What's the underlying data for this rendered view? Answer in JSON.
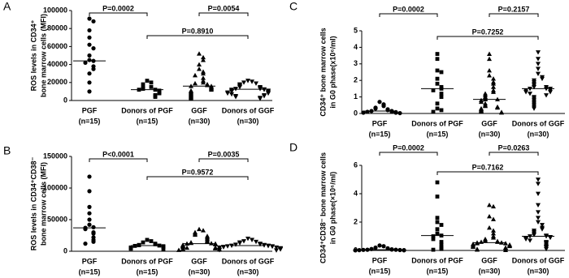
{
  "chart_data": [
    {
      "type": "dot",
      "panel_label": "A",
      "y_label": [
        "ROS levels in CD34⁺",
        "bone marrow cells (MFI)"
      ],
      "categories": [
        "PGF",
        "Donors of PGF",
        "GGF",
        "Donors of GGF"
      ],
      "group_sizes": [
        "(n=15)",
        "(n=15)",
        "(n=30)",
        "(n=30)"
      ],
      "markers": [
        "circle",
        "square",
        "triangle-up",
        "triangle-down"
      ],
      "color": "#000000",
      "ylim": [
        0,
        100000
      ],
      "yticks": [
        0,
        20000,
        40000,
        60000,
        80000,
        100000
      ],
      "groups": [
        {
          "median": 44000,
          "values": [
            91000,
            88000,
            78000,
            70000,
            62000,
            58000,
            50000,
            45000,
            44000,
            42000,
            38000,
            35000,
            30000,
            20000,
            10000
          ]
        },
        {
          "median": 12000,
          "values": [
            22000,
            20000,
            18000,
            15000,
            14000,
            13000,
            12000,
            12000,
            11000,
            10000,
            9000,
            8000,
            6000,
            5000,
            4000
          ]
        },
        {
          "median": 16000,
          "values": [
            52000,
            48000,
            45000,
            40000,
            35000,
            32000,
            30000,
            28000,
            25000,
            22000,
            20000,
            19000,
            18000,
            17000,
            16000,
            16000,
            15000,
            14000,
            13000,
            12000,
            11000,
            10000,
            9000,
            8000,
            7000,
            6000,
            5000,
            4000,
            3000,
            2000
          ]
        },
        {
          "median": 12500,
          "values": [
            22000,
            21000,
            20000,
            19000,
            18000,
            17000,
            16000,
            15000,
            15000,
            14000,
            13000,
            13000,
            12500,
            12000,
            12000,
            11000,
            11000,
            10000,
            10000,
            9000,
            9000,
            8000,
            8000,
            7000,
            6000,
            5000,
            5000,
            4000,
            3000,
            2000
          ]
        }
      ],
      "comparisons": [
        "P=0.0002",
        "P=0.0054",
        "P=0.8910"
      ]
    },
    {
      "type": "dot",
      "panel_label": "B",
      "y_label": [
        "ROS levels in CD34⁺CD38⁻",
        "bone marrow cells (MFI)"
      ],
      "categories": [
        "PGF",
        "Donors of PGF",
        "GGF",
        "Donors of GGF"
      ],
      "group_sizes": [
        "(n=15)",
        "(n=15)",
        "(n=30)",
        "(n=30)"
      ],
      "markers": [
        "circle",
        "square",
        "triangle-up",
        "triangle-down"
      ],
      "color": "#000000",
      "ylim": [
        0,
        150000
      ],
      "yticks": [
        0,
        50000,
        100000,
        150000
      ],
      "groups": [
        {
          "median": 37000,
          "values": [
            118000,
            95000,
            70000,
            60000,
            50000,
            42000,
            38000,
            37000,
            35000,
            30000,
            28000,
            22000,
            18000,
            15000,
            12000
          ]
        },
        {
          "median": 9000,
          "values": [
            18000,
            16000,
            14000,
            12000,
            11000,
            10000,
            9500,
            9000,
            8500,
            8000,
            7000,
            6000,
            5000,
            4000,
            3000
          ]
        },
        {
          "median": 12000,
          "values": [
            35000,
            33000,
            30000,
            28000,
            26000,
            24000,
            22000,
            20000,
            18000,
            16000,
            15000,
            14000,
            13000,
            12500,
            12000,
            12000,
            11000,
            10000,
            9000,
            8000,
            7000,
            6000,
            5500,
            5000,
            4500,
            4000,
            3500,
            3000,
            2500,
            2000
          ]
        },
        {
          "median": 9000,
          "values": [
            20000,
            18000,
            16000,
            15000,
            14000,
            13000,
            12000,
            11000,
            10500,
            10000,
            9500,
            9000,
            9000,
            8500,
            8000,
            8000,
            7500,
            7000,
            6500,
            6000,
            6000,
            5500,
            5000,
            4500,
            4000,
            3500,
            3000,
            2500,
            2000,
            1500
          ]
        }
      ],
      "comparisons": [
        "P<0.0001",
        "P=0.0035",
        "P=0.9572"
      ]
    },
    {
      "type": "dot",
      "panel_label": "C",
      "y_label": [
        "CD34⁺ bone marrow cells",
        "in G0 phase(x10⁶/ml)"
      ],
      "categories": [
        "PGF",
        "Donors of PGF",
        "GGF",
        "Donors of GGF"
      ],
      "group_sizes": [
        "(n=15)",
        "(n=15)",
        "(n=30)",
        "(n=30)"
      ],
      "markers": [
        "circle",
        "square",
        "triangle-up",
        "triangle-down"
      ],
      "color": "#000000",
      "ylim": [
        0,
        5
      ],
      "yticks": [
        0,
        1,
        2,
        3,
        4,
        5
      ],
      "groups": [
        {
          "median": 0.15,
          "values": [
            0.7,
            0.55,
            0.45,
            0.35,
            0.3,
            0.25,
            0.2,
            0.15,
            0.15,
            0.1,
            0.1,
            0.08,
            0.05,
            0.05,
            0.02
          ]
        },
        {
          "median": 1.5,
          "values": [
            3.6,
            3.3,
            2.6,
            2.5,
            2.1,
            1.8,
            1.6,
            1.5,
            1.4,
            1.2,
            1.0,
            0.6,
            0.3,
            0.2,
            0.1
          ]
        },
        {
          "median": 0.85,
          "values": [
            3.6,
            3.3,
            2.6,
            2.3,
            2.1,
            1.9,
            1.8,
            1.6,
            1.4,
            1.3,
            1.2,
            1.1,
            1.0,
            0.9,
            0.85,
            0.85,
            0.8,
            0.7,
            0.6,
            0.5,
            0.45,
            0.4,
            0.35,
            0.3,
            0.25,
            0.2,
            0.15,
            0.1,
            0.08,
            0.05
          ]
        },
        {
          "median": 1.5,
          "values": [
            3.7,
            3.3,
            3.0,
            2.7,
            2.4,
            2.2,
            2.1,
            2.0,
            1.9,
            1.8,
            1.7,
            1.6,
            1.6,
            1.5,
            1.5,
            1.5,
            1.4,
            1.4,
            1.3,
            1.3,
            1.2,
            1.1,
            1.0,
            0.9,
            0.8,
            0.7,
            0.6,
            0.5,
            0.4,
            0.3
          ]
        }
      ],
      "comparisons": [
        "P=0.0002",
        "P=0.2157",
        "P=0.7252"
      ]
    },
    {
      "type": "dot",
      "panel_label": "D",
      "y_label": [
        "CD34⁺CD38⁻ bone marrow cells",
        "in G0 phase(×10⁶/ml)"
      ],
      "categories": [
        "PGF",
        "Donors of PGF",
        "GGF",
        "Donors of GGF"
      ],
      "group_sizes": [
        "(n=15)",
        "(n=15)",
        "(n=30)",
        "(n=30)"
      ],
      "markers": [
        "circle",
        "square",
        "triangle-up",
        "triangle-down"
      ],
      "color": "#000000",
      "ylim": [
        0,
        6
      ],
      "yticks": [
        0,
        2,
        4,
        6
      ],
      "groups": [
        {
          "median": 0.05,
          "values": [
            0.35,
            0.3,
            0.2,
            0.15,
            0.1,
            0.08,
            0.06,
            0.05,
            0.05,
            0.04,
            0.03,
            0.02,
            0.02,
            0.01,
            0.01
          ]
        },
        {
          "median": 1.05,
          "values": [
            4.8,
            3.8,
            2.3,
            2.0,
            1.8,
            1.5,
            1.2,
            1.05,
            1.0,
            0.8,
            0.6,
            0.4,
            0.2,
            0.1,
            0.05
          ]
        },
        {
          "median": 0.55,
          "values": [
            3.2,
            3.1,
            2.4,
            2.2,
            1.6,
            1.4,
            1.2,
            1.0,
            0.9,
            0.8,
            0.7,
            0.65,
            0.6,
            0.6,
            0.55,
            0.55,
            0.5,
            0.5,
            0.45,
            0.4,
            0.4,
            0.35,
            0.3,
            0.3,
            0.25,
            0.2,
            0.15,
            0.1,
            0.05,
            0.02
          ]
        },
        {
          "median": 1.0,
          "values": [
            5.0,
            4.7,
            4.0,
            3.2,
            2.7,
            2.3,
            2.0,
            1.8,
            1.6,
            1.5,
            1.4,
            1.3,
            1.2,
            1.1,
            1.05,
            1.0,
            1.0,
            0.95,
            0.9,
            0.85,
            0.8,
            0.7,
            0.6,
            0.55,
            0.5,
            0.4,
            0.3,
            0.25,
            0.2,
            0.1
          ]
        }
      ],
      "comparisons": [
        "P=0.0002",
        "P=0.0263",
        "P=0.7162"
      ]
    }
  ]
}
